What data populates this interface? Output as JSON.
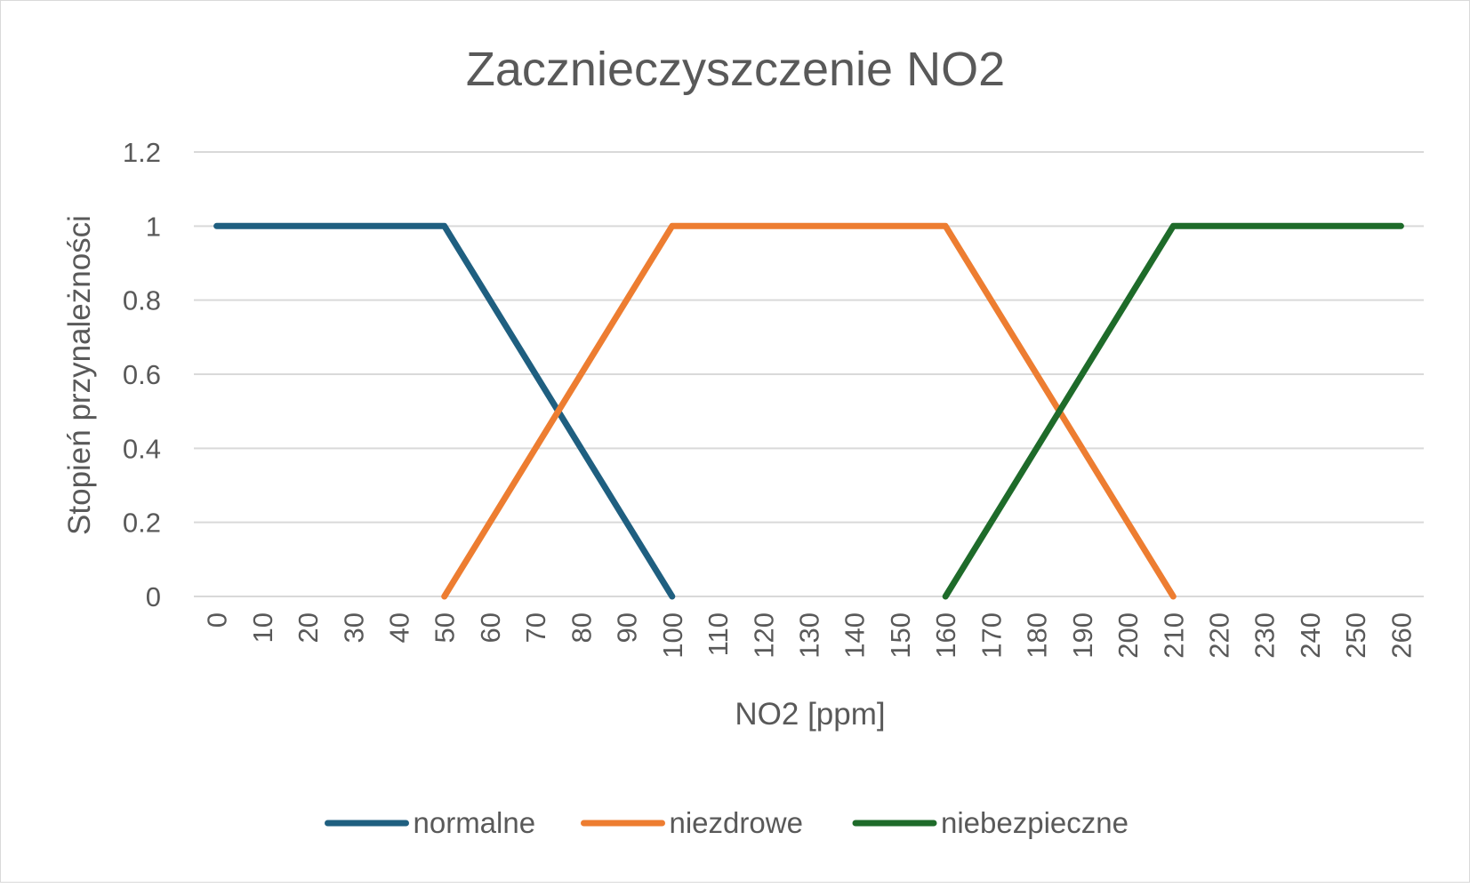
{
  "chart_data": {
    "type": "line",
    "title": "Zacznieczyszczenie NO2",
    "xlabel": "NO2 [ppm]",
    "ylabel": "Stopień przynależności",
    "x": [
      0,
      10,
      20,
      30,
      40,
      50,
      60,
      70,
      80,
      90,
      100,
      110,
      120,
      130,
      140,
      150,
      160,
      170,
      180,
      190,
      200,
      210,
      220,
      230,
      240,
      250,
      260
    ],
    "x_tick_labels": [
      "0",
      "10",
      "20",
      "30",
      "40",
      "50",
      "60",
      "70",
      "80",
      "90",
      "100",
      "110",
      "120",
      "130",
      "140",
      "150",
      "160",
      "170",
      "180",
      "190",
      "200",
      "210",
      "220",
      "230",
      "240",
      "250",
      "260"
    ],
    "ylim": [
      0,
      1.2
    ],
    "y_tick_labels": [
      "0",
      "0.2",
      "0.4",
      "0.6",
      "0.8",
      "1",
      "1.2"
    ],
    "y_ticks": [
      0,
      0.2,
      0.4,
      0.6,
      0.8,
      1,
      1.2
    ],
    "grid": true,
    "legend_position": "bottom",
    "series": [
      {
        "name": "normalne",
        "color": "#1f5f80",
        "points": [
          [
            0,
            1
          ],
          [
            50,
            1
          ],
          [
            100,
            0
          ]
        ]
      },
      {
        "name": "niezdrowe",
        "color": "#ed7d31",
        "points": [
          [
            50,
            0
          ],
          [
            100,
            1
          ],
          [
            160,
            1
          ],
          [
            210,
            0
          ]
        ]
      },
      {
        "name": "niebezpieczne",
        "color": "#1e6b2a",
        "points": [
          [
            160,
            0
          ],
          [
            210,
            1
          ],
          [
            260,
            1
          ]
        ]
      }
    ]
  }
}
